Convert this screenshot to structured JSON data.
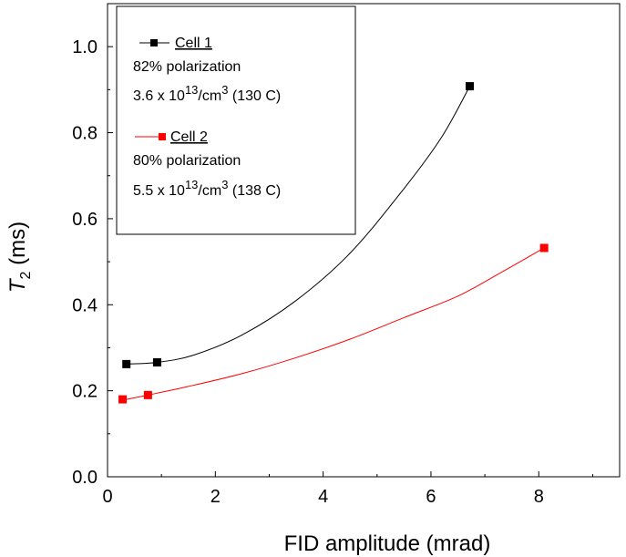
{
  "chart_data": {
    "type": "scatter",
    "xlabel": "FID amplitude (mrad)",
    "ylabel": {
      "base": "T",
      "sub": "2",
      "unit": " (ms)"
    },
    "xlim": [
      0,
      9.5
    ],
    "ylim": [
      0,
      1.1
    ],
    "xticks": [
      0,
      2,
      4,
      6,
      8
    ],
    "xtick_labels": [
      "0",
      "2",
      "4",
      "6",
      "8"
    ],
    "yticks": [
      0.0,
      0.2,
      0.4,
      0.6,
      0.8,
      1.0
    ],
    "ytick_labels": [
      "0.0",
      "0.2",
      "0.4",
      "0.6",
      "0.8",
      "1.0"
    ],
    "grid": false,
    "legend_position": "top-left",
    "series": [
      {
        "name": "Cell 1",
        "color": "#000000",
        "marker": "square",
        "x": [
          0.35,
          0.92,
          6.72
        ],
        "y": [
          0.262,
          0.266,
          0.908
        ],
        "fit": [
          [
            0.35,
            0.262
          ],
          [
            0.92,
            0.266
          ],
          [
            1.6,
            0.283
          ],
          [
            2.5,
            0.33
          ],
          [
            3.5,
            0.41
          ],
          [
            4.5,
            0.52
          ],
          [
            5.5,
            0.67
          ],
          [
            6.2,
            0.79
          ],
          [
            6.72,
            0.908
          ]
        ],
        "legend_lines": [
          {
            "pre": "82% polarization"
          },
          {
            "pre": "3.6 x 10",
            "sup1": "13",
            "mid": "/cm",
            "sup2": "3",
            "post": " (130 C)"
          }
        ]
      },
      {
        "name": "Cell 2",
        "color": "#ff0000",
        "marker": "square",
        "x": [
          0.28,
          0.75,
          8.1
        ],
        "y": [
          0.18,
          0.19,
          0.532
        ],
        "fit": [
          [
            0.28,
            0.178
          ],
          [
            0.75,
            0.19
          ],
          [
            1.5,
            0.21
          ],
          [
            2.5,
            0.24
          ],
          [
            3.5,
            0.277
          ],
          [
            4.5,
            0.32
          ],
          [
            5.5,
            0.37
          ],
          [
            6.5,
            0.42
          ],
          [
            7.3,
            0.475
          ],
          [
            8.1,
            0.532
          ]
        ],
        "legend_lines": [
          {
            "pre": "80%  polarization"
          },
          {
            "pre": "5.5 x 10",
            "sup1": "13",
            "mid": "/cm",
            "sup2": "3",
            "post": "  (138 C)"
          }
        ]
      }
    ]
  }
}
